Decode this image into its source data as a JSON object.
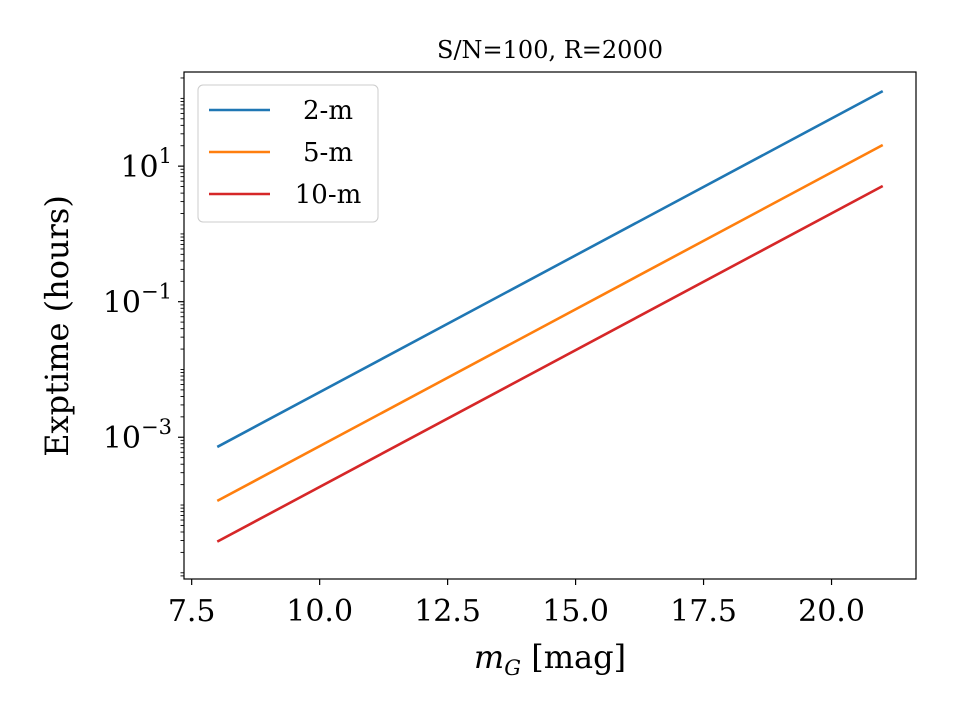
{
  "chart_data": {
    "type": "line",
    "title": "S/N=100, R=2000",
    "xlabel_main": "m",
    "xlabel_sub": "G",
    "xlabel_unit": " [mag]",
    "ylabel": "Exptime (hours)",
    "xlim": [
      7.35,
      21.65
    ],
    "ylim": [
      8.1e-06,
      245
    ],
    "yscale": "log",
    "x_ticks": [
      {
        "value": 7.5,
        "label": "7.5"
      },
      {
        "value": 10.0,
        "label": "10.0"
      },
      {
        "value": 12.5,
        "label": "12.5"
      },
      {
        "value": 15.0,
        "label": "15.0"
      },
      {
        "value": 17.5,
        "label": "17.5"
      },
      {
        "value": 20.0,
        "label": "20.0"
      }
    ],
    "y_ticks": [
      {
        "value": 0.001,
        "base": "10",
        "exp": "−3"
      },
      {
        "value": 0.1,
        "base": "10",
        "exp": "−1"
      },
      {
        "value": 10,
        "base": "10",
        "exp": "1"
      }
    ],
    "legend_position": "top-left",
    "grid": false,
    "series": [
      {
        "name": "2-m",
        "color": "#1f77b4",
        "x": [
          8,
          21
        ],
        "y": [
          0.00072,
          128
        ]
      },
      {
        "name": "5-m",
        "color": "#ff7f0e",
        "x": [
          8,
          21
        ],
        "y": [
          0.000115,
          20.5
        ]
      },
      {
        "name": "10-m",
        "color": "#d62728",
        "x": [
          8,
          21
        ],
        "y": [
          2.88e-05,
          5.1
        ]
      }
    ]
  }
}
